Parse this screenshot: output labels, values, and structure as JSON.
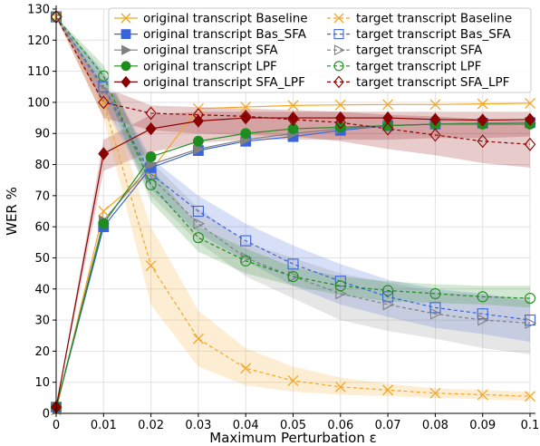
{
  "chart_data": {
    "type": "line",
    "title": "",
    "xlabel": "Maximum Perturbation ε",
    "ylabel": "WER %",
    "x": [
      0,
      0.01,
      0.02,
      0.03,
      0.04,
      0.05,
      0.06,
      0.07,
      0.08,
      0.09,
      0.1
    ],
    "x_ticks": [
      "0",
      "0.01",
      "0.02",
      "0.03",
      "0.04",
      "0.05",
      "0.06",
      "0.07",
      "0.08",
      "0.09",
      "0.1"
    ],
    "xlim": [
      0,
      0.1
    ],
    "ylim": [
      0,
      130
    ],
    "y_ticks": [
      0,
      10,
      20,
      30,
      40,
      50,
      60,
      70,
      80,
      90,
      100,
      110,
      120,
      130
    ],
    "grid": true,
    "legend_position": "top-right",
    "series": [
      {
        "name": "original transcript Baseline",
        "color": "#f5a623",
        "marker": "x",
        "linestyle": "solid",
        "filled": false,
        "values": [
          1,
          65,
          78,
          98,
          98.5,
          99,
          99.2,
          99.3,
          99.3,
          99.5,
          99.7
        ],
        "band": null
      },
      {
        "name": "original transcript Bas_SFA",
        "color": "#3a64db",
        "marker": "square",
        "linestyle": "solid",
        "filled": true,
        "values": [
          2,
          60,
          79,
          84.5,
          87.5,
          89,
          91,
          92.5,
          93,
          93.3,
          93.5
        ],
        "band": null
      },
      {
        "name": "original transcript SFA",
        "color": "#808080",
        "marker": "triangle",
        "linestyle": "solid",
        "filled": true,
        "values": [
          2,
          62,
          80,
          85,
          88,
          90,
          91.5,
          92.5,
          93,
          93.3,
          93.5
        ],
        "band": null
      },
      {
        "name": "original transcript LPF",
        "color": "#1e8c1e",
        "marker": "circle",
        "linestyle": "solid",
        "filled": true,
        "values": [
          2,
          61,
          82.5,
          87.5,
          90,
          91.5,
          92,
          92.5,
          93,
          93,
          93
        ],
        "band": null
      },
      {
        "name": "original transcript SFA_LPF",
        "color": "#8b0000",
        "marker": "diamond",
        "linestyle": "solid",
        "filled": true,
        "values": [
          2,
          83.5,
          91.5,
          94,
          95,
          95,
          95,
          95,
          94.5,
          94.3,
          94.5
        ],
        "band": {
          "lower": [
            2,
            78,
            84,
            87,
            88,
            88,
            88,
            88,
            88.5,
            88.5,
            89
          ],
          "upper": [
            2,
            88,
            96,
            97,
            97,
            97,
            97,
            97,
            97,
            97,
            97
          ]
        }
      },
      {
        "name": "target transcript Baseline",
        "color": "#f5a623",
        "marker": "x",
        "linestyle": "dashed",
        "filled": false,
        "values": [
          127.5,
          100,
          47.5,
          24,
          14.5,
          10.5,
          8.5,
          7.5,
          6.5,
          6,
          5.5
        ],
        "band": {
          "lower": [
            127.5,
            95,
            35,
            15,
            9,
            7,
            6,
            5.5,
            5,
            4.5,
            4
          ],
          "upper": [
            127.5,
            106,
            60,
            33,
            21,
            15,
            11.5,
            9.5,
            8,
            7.5,
            7
          ]
        }
      },
      {
        "name": "target transcript Bas_SFA",
        "color": "#3a64db",
        "marker": "square",
        "linestyle": "dashed",
        "filled": false,
        "values": [
          127.5,
          105,
          77,
          65,
          55.5,
          48,
          42.5,
          37.5,
          34,
          32,
          30
        ],
        "band": {
          "lower": [
            127.5,
            100,
            72,
            58,
            49,
            41,
            35,
            31,
            27.5,
            25.5,
            23
          ],
          "upper": [
            127.5,
            110,
            82,
            70,
            61,
            54,
            48,
            43,
            40,
            38.5,
            36
          ]
        }
      },
      {
        "name": "target transcript SFA",
        "color": "#808080",
        "marker": "triangle",
        "linestyle": "dashed",
        "filled": false,
        "values": [
          127.5,
          104,
          76,
          61,
          50,
          44,
          38.5,
          35,
          32,
          30,
          29
        ],
        "band": {
          "lower": [
            127.5,
            99,
            70,
            55,
            44,
            37,
            30,
            26.5,
            24,
            21,
            19
          ],
          "upper": [
            127.5,
            109,
            81,
            66,
            55,
            50,
            45,
            42,
            39,
            38,
            37
          ]
        }
      },
      {
        "name": "target transcript LPF",
        "color": "#1e8c1e",
        "marker": "circle",
        "linestyle": "dashed",
        "filled": false,
        "values": [
          127.5,
          108.5,
          73.5,
          56.5,
          49,
          44,
          41,
          39.5,
          38.5,
          37.5,
          37
        ],
        "band": {
          "lower": [
            127.5,
            105,
            68,
            52,
            45,
            41,
            38,
            36,
            35.5,
            35,
            34
          ],
          "upper": [
            127.5,
            112,
            79,
            60,
            53,
            47,
            44,
            42.5,
            41.5,
            41,
            41
          ]
        }
      },
      {
        "name": "target transcript SFA_LPF",
        "color": "#8b0000",
        "marker": "diamond",
        "linestyle": "dashed",
        "filled": false,
        "values": [
          127.5,
          100,
          96.5,
          96,
          95.5,
          94.5,
          93.5,
          91.5,
          89.5,
          87.5,
          86.5
        ],
        "band": {
          "lower": [
            127.5,
            95,
            91,
            90,
            89.5,
            89,
            87.5,
            85,
            83,
            80.5,
            79
          ],
          "upper": [
            127.5,
            105,
            99,
            98.5,
            98,
            97.5,
            97,
            96,
            95.5,
            94.5,
            94
          ]
        }
      }
    ]
  }
}
